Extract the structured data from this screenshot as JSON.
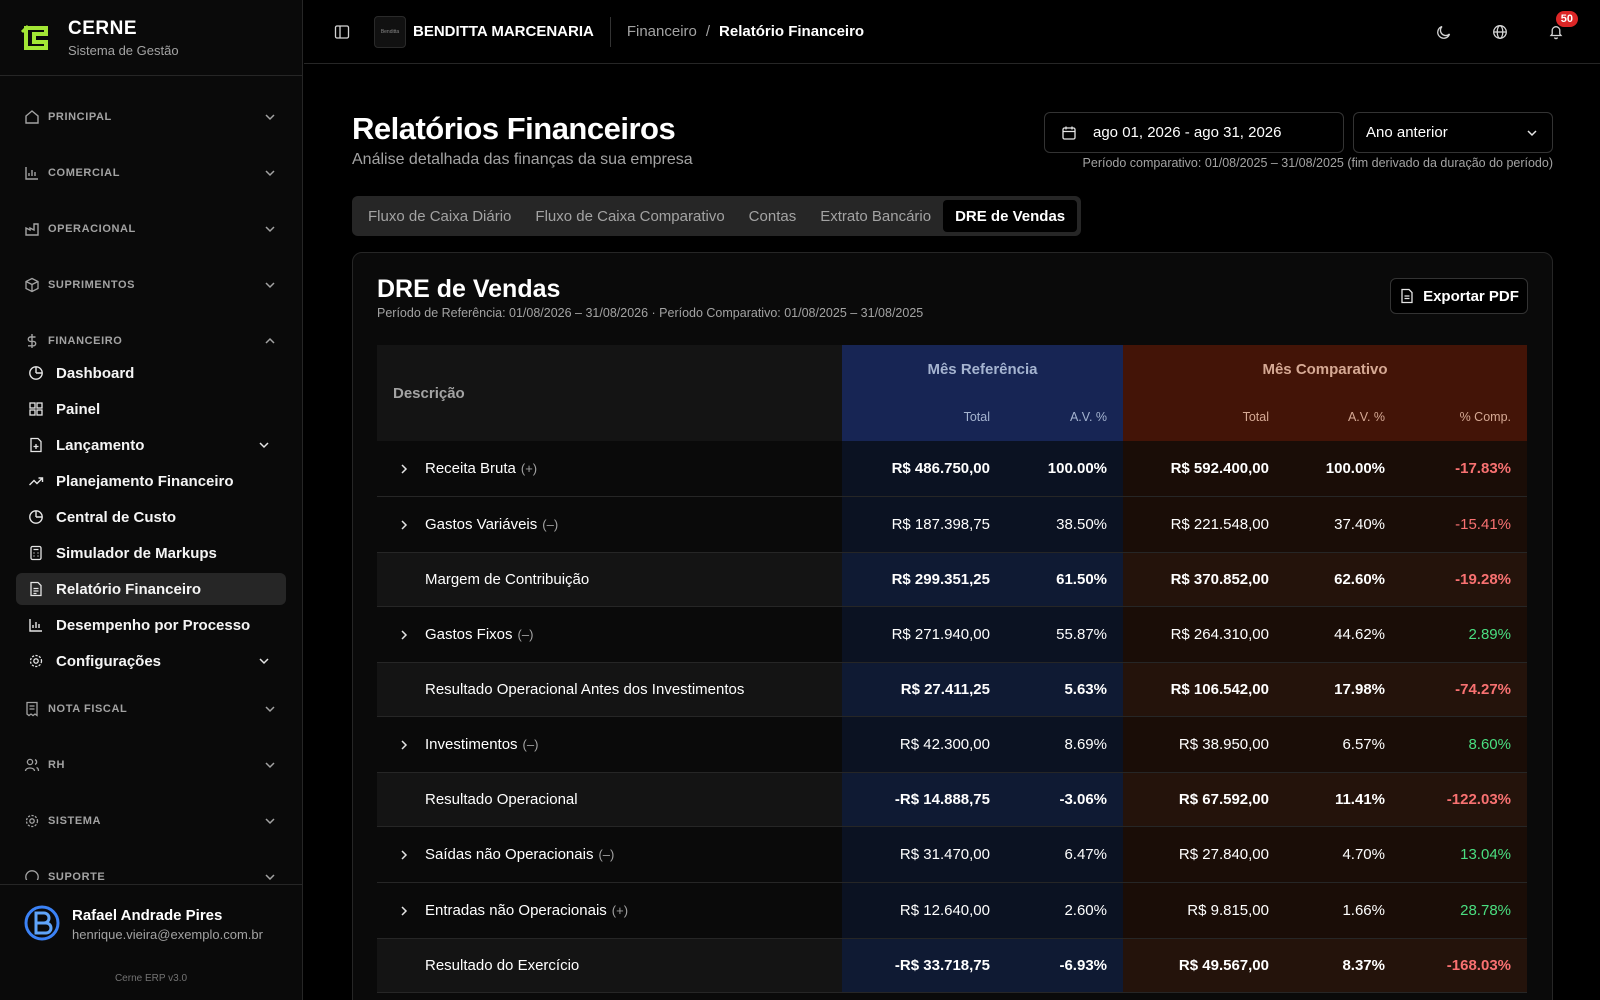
{
  "app": {
    "name": "CERNE",
    "subtitle": "Sistema de Gestão",
    "version": "Cerne ERP v3.0"
  },
  "sidebar": {
    "sections": {
      "principal": "PRINCIPAL",
      "comercial": "COMERCIAL",
      "operacional": "OPERACIONAL",
      "suprimentos": "SUPRIMENTOS",
      "financeiro": "FINANCEIRO",
      "nota_fiscal": "NOTA FISCAL",
      "rh": "RH",
      "sistema": "SISTEMA",
      "suporte": "SUPORTE"
    },
    "financeiro_items": [
      {
        "label": "Dashboard",
        "icon": "pie-chart-icon"
      },
      {
        "label": "Painel",
        "icon": "grid-icon"
      },
      {
        "label": "Lançamento",
        "icon": "file-plus-icon"
      },
      {
        "label": "Planejamento Financeiro",
        "icon": "trending-up-icon"
      },
      {
        "label": "Central de Custo",
        "icon": "pie-chart-icon"
      },
      {
        "label": "Simulador de Markups",
        "icon": "calculator-icon"
      },
      {
        "label": "Relatório Financeiro",
        "icon": "file-text-icon"
      },
      {
        "label": "Desempenho por Processo",
        "icon": "bar-chart-icon"
      },
      {
        "label": "Configurações",
        "icon": "gear-icon"
      }
    ]
  },
  "user": {
    "name": "Rafael Andrade Pires",
    "email": "henrique.vieira@exemplo.com.br"
  },
  "topbar": {
    "company": "BENDITTA MARCENARIA",
    "company_logo_text": "Benditta",
    "breadcrumb": [
      "Financeiro",
      "Relatório Financeiro"
    ],
    "breadcrumb_sep": "/",
    "notifications": "50"
  },
  "page": {
    "title": "Relatórios Financeiros",
    "subtitle": "Análise detalhada das finanças da sua empresa",
    "date_range": "ago 01, 2026 - ago 31, 2026",
    "compare_mode": "Ano anterior",
    "compare_note": "Período comparativo: 01/08/2025 – 31/08/2025 (fim derivado da duração do período)"
  },
  "tabs": [
    "Fluxo de Caixa Diário",
    "Fluxo de Caixa Comparativo",
    "Contas",
    "Extrato Bancário",
    "DRE de Vendas"
  ],
  "report": {
    "title": "DRE de Vendas",
    "subtitle": "Período de Referência: 01/08/2026 – 31/08/2026 · Período Comparativo: 01/08/2025 – 31/08/2025",
    "export_label": "Exportar PDF",
    "headers": {
      "descricao": "Descrição",
      "ref_group": "Mês Referência",
      "cmp_group": "Mês Comparativo",
      "total": "Total",
      "av": "A.V. %",
      "comp": "% Comp."
    },
    "rows": [
      {
        "label": "Receita Bruta",
        "sign": "(+)",
        "expand": true,
        "type": "bold",
        "ref_total": "R$ 486.750,00",
        "ref_av": "100.00%",
        "cmp_total": "R$ 592.400,00",
        "cmp_av": "100.00%",
        "comp": "-17.83%",
        "comp_dir": "neg"
      },
      {
        "label": "Gastos Variáveis",
        "sign": "(–)",
        "expand": true,
        "type": "normal",
        "ref_total": "R$ 187.398,75",
        "ref_av": "38.50%",
        "cmp_total": "R$ 221.548,00",
        "cmp_av": "37.40%",
        "comp": "-15.41%",
        "comp_dir": "neg"
      },
      {
        "label": "Margem de Contribuição",
        "sign": "",
        "expand": false,
        "type": "sub",
        "ref_total": "R$ 299.351,25",
        "ref_av": "61.50%",
        "cmp_total": "R$ 370.852,00",
        "cmp_av": "62.60%",
        "comp": "-19.28%",
        "comp_dir": "neg"
      },
      {
        "label": "Gastos Fixos",
        "sign": "(–)",
        "expand": true,
        "type": "normal",
        "ref_total": "R$ 271.940,00",
        "ref_av": "55.87%",
        "cmp_total": "R$ 264.310,00",
        "cmp_av": "44.62%",
        "comp": "2.89%",
        "comp_dir": "pos"
      },
      {
        "label": "Resultado Operacional Antes dos Investimentos",
        "sign": "",
        "expand": false,
        "type": "sub",
        "ref_total": "R$ 27.411,25",
        "ref_av": "5.63%",
        "cmp_total": "R$ 106.542,00",
        "cmp_av": "17.98%",
        "comp": "-74.27%",
        "comp_dir": "neg"
      },
      {
        "label": "Investimentos",
        "sign": "(–)",
        "expand": true,
        "type": "normal",
        "ref_total": "R$ 42.300,00",
        "ref_av": "8.69%",
        "cmp_total": "R$ 38.950,00",
        "cmp_av": "6.57%",
        "comp": "8.60%",
        "comp_dir": "pos"
      },
      {
        "label": "Resultado Operacional",
        "sign": "",
        "expand": false,
        "type": "sub",
        "ref_total": "-R$ 14.888,75",
        "ref_av": "-3.06%",
        "cmp_total": "R$ 67.592,00",
        "cmp_av": "11.41%",
        "comp": "-122.03%",
        "comp_dir": "neg"
      },
      {
        "label": "Saídas não Operacionais",
        "sign": "(–)",
        "expand": true,
        "type": "normal",
        "ref_total": "R$ 31.470,00",
        "ref_av": "6.47%",
        "cmp_total": "R$ 27.840,00",
        "cmp_av": "4.70%",
        "comp": "13.04%",
        "comp_dir": "pos"
      },
      {
        "label": "Entradas não Operacionais",
        "sign": "(+)",
        "expand": true,
        "type": "normal",
        "ref_total": "R$ 12.640,00",
        "ref_av": "2.60%",
        "cmp_total": "R$ 9.815,00",
        "cmp_av": "1.66%",
        "comp": "28.78%",
        "comp_dir": "pos"
      },
      {
        "label": "Resultado do Exercício",
        "sign": "",
        "expand": false,
        "type": "sub",
        "ref_total": "-R$ 33.718,75",
        "ref_av": "-6.93%",
        "cmp_total": "R$ 49.567,00",
        "cmp_av": "8.37%",
        "comp": "-168.03%",
        "comp_dir": "neg"
      }
    ]
  },
  "colors": {
    "accent_logo": "#a3e635",
    "ref_header": "#172554",
    "cmp_header": "#431407",
    "negative": "#f87171",
    "positive": "#4ade80",
    "badge": "#dc2626"
  }
}
